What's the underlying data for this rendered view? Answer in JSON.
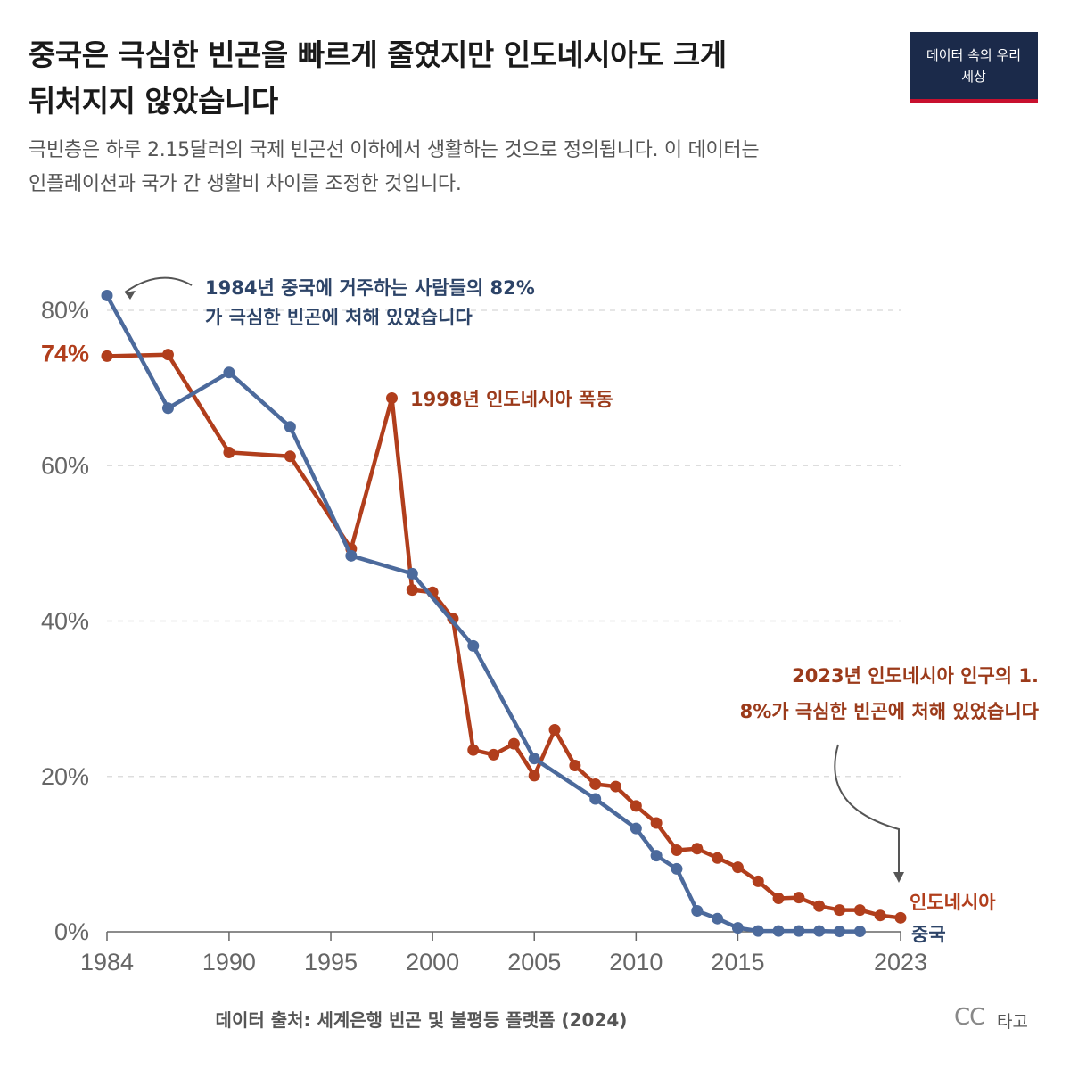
{
  "header": {
    "title_line1": "중국은 극심한 빈곤을 빠르게 줄였지만 인도네시아도 크게",
    "title_line2": "뒤처지지 않았습니다",
    "subtitle_line1": "극빈층은 하루 2.15달러의 국제 빈곤선 이하에서 생활하는 것으로 정의됩니다. 이 데이터는",
    "subtitle_line2": "인플레이션과 국가 간 생활비 차이를 조정한 것입니다.",
    "logo_line1": "데이터 속의 우리",
    "logo_line2": "세상"
  },
  "footer": {
    "source": "데이터 출처: 세계은행 빈곤 및 불평등 플랫폼 (2024)",
    "cc": "CC",
    "license": "타고"
  },
  "colors": {
    "china": "#4c6a9c",
    "indonesia": "#b13e1c",
    "grid": "#dddddd",
    "axis": "#666666",
    "arrow": "#555555"
  },
  "chart_data": {
    "type": "line",
    "title": "중국은 극심한 빈곤을 빠르게 줄였지만 인도네시아도 크게 뒤처지지 않았습니다",
    "ylim": [
      0,
      80
    ],
    "xlim": [
      1984,
      2023
    ],
    "y_ticks": [
      {
        "value": 0,
        "label": "0%"
      },
      {
        "value": 20,
        "label": "20%"
      },
      {
        "value": 40,
        "label": "40%"
      },
      {
        "value": 60,
        "label": "60%"
      },
      {
        "value": 80,
        "label": "80%"
      }
    ],
    "x_ticks": [
      {
        "value": 1984,
        "label": "1984"
      },
      {
        "value": 1990,
        "label": "1990"
      },
      {
        "value": 1995,
        "label": "1995"
      },
      {
        "value": 2000,
        "label": "2000"
      },
      {
        "value": 2005,
        "label": "2005"
      },
      {
        "value": 2010,
        "label": "2010"
      },
      {
        "value": 2015,
        "label": "2015"
      },
      {
        "value": 2023,
        "label": "2023"
      }
    ],
    "grid": true,
    "series": [
      {
        "name": "인도네시아",
        "color": "#b13e1c",
        "start_label": "74%",
        "x": [
          1984,
          1987,
          1990,
          1993,
          1996,
          1998,
          1999,
          2000,
          2001,
          2002,
          2003,
          2004,
          2005,
          2006,
          2007,
          2008,
          2009,
          2010,
          2011,
          2012,
          2013,
          2014,
          2015,
          2016,
          2017,
          2018,
          2019,
          2020,
          2021,
          2022,
          2023
        ],
        "values": [
          74.1,
          74.3,
          61.7,
          61.2,
          49.3,
          68.7,
          44.0,
          43.7,
          40.3,
          23.4,
          22.8,
          24.2,
          20.1,
          26.0,
          21.4,
          19.0,
          18.7,
          16.2,
          14.0,
          10.5,
          10.7,
          9.5,
          8.3,
          6.5,
          4.3,
          4.4,
          3.3,
          2.8,
          2.8,
          2.1,
          1.8
        ]
      },
      {
        "name": "중국",
        "color": "#4c6a9c",
        "x": [
          1984,
          1987,
          1990,
          1993,
          1996,
          1999,
          2002,
          2005,
          2008,
          2010,
          2011,
          2012,
          2013,
          2014,
          2015,
          2016,
          2017,
          2018,
          2019,
          2020,
          2021
        ],
        "values": [
          81.9,
          67.4,
          72.0,
          65.0,
          48.4,
          46.1,
          36.8,
          22.3,
          17.1,
          13.3,
          9.8,
          8.1,
          2.7,
          1.7,
          0.5,
          0.1,
          0.1,
          0.1,
          0.1,
          0.05,
          0.05
        ]
      }
    ],
    "annotations": {
      "china_1984_line1": "1984년 중국에 거주하는 사람들의 82%",
      "china_1984_line2": "가 극심한 빈곤에 처해 있었습니다",
      "indonesia_1998": "1998년 인도네시아 폭동",
      "indonesia_2023_line1": "2023년 인도네시아 인구의 1.",
      "indonesia_2023_line2": "8%가 극심한 빈곤에 처해 있었습니다"
    }
  }
}
